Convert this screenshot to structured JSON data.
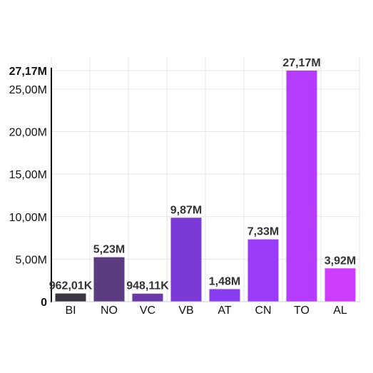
{
  "chart_data": {
    "type": "bar",
    "title": "",
    "xlabel": "",
    "ylabel": "",
    "categories": [
      "BI",
      "NO",
      "VC",
      "VB",
      "AT",
      "CN",
      "TO",
      "AL"
    ],
    "values": [
      962010,
      5230000,
      948110,
      9870000,
      1480000,
      7330000,
      27170000,
      3920000
    ],
    "value_labels": [
      "962,01K",
      "5,23M",
      "948,11K",
      "9,87M",
      "1,48M",
      "7,33M",
      "27,17M",
      "3,92M"
    ],
    "colors": [
      "#3d3645",
      "#5b3c80",
      "#6a3aa6",
      "#7b3ad6",
      "#8a3cf0",
      "#9a3cf7",
      "#b53cfb",
      "#cc3cfa"
    ],
    "ylim": [
      0,
      27170000
    ],
    "y_ticks": [
      {
        "value": 0,
        "label": "0"
      },
      {
        "value": 5000000,
        "label": "5,00M"
      },
      {
        "value": 10000000,
        "label": "10,00M"
      },
      {
        "value": 15000000,
        "label": "15,00M"
      },
      {
        "value": 20000000,
        "label": "20,00M"
      },
      {
        "value": 25000000,
        "label": "25,00M"
      }
    ],
    "y_max_label": "27,17M",
    "grid": true
  }
}
